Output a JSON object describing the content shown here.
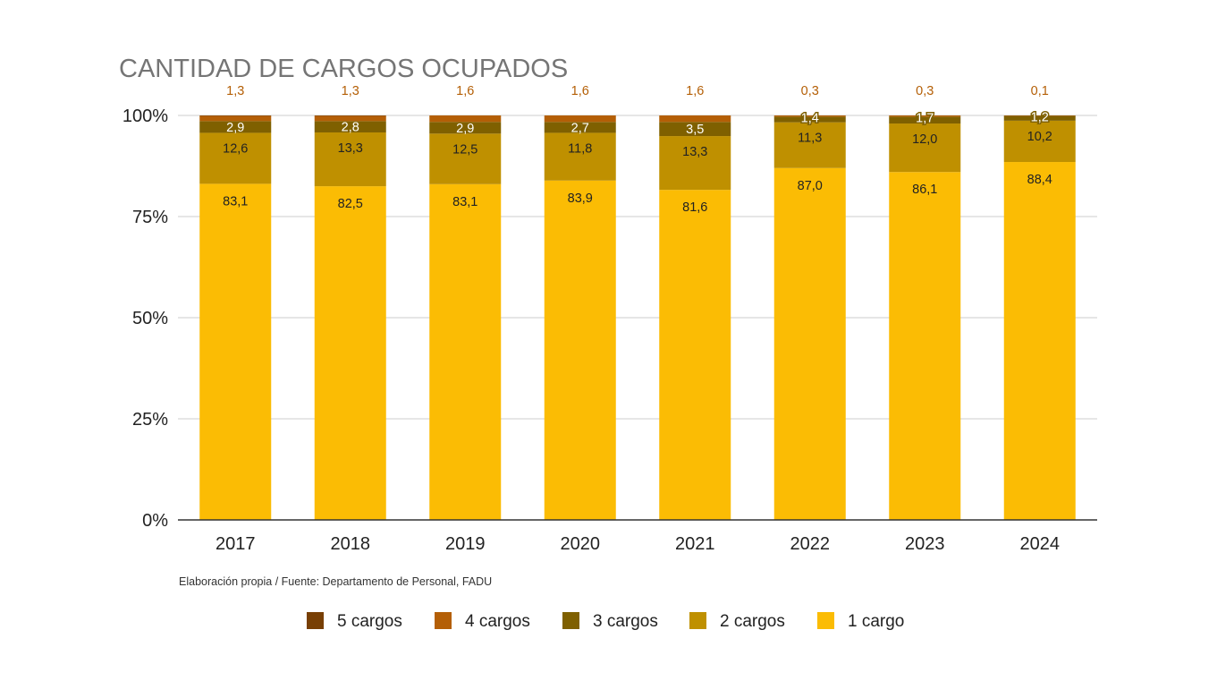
{
  "chart_data": {
    "type": "bar",
    "stacked": true,
    "normalized": true,
    "title": "CANTIDAD DE CARGOS OCUPADOS",
    "categories": [
      "2017",
      "2018",
      "2019",
      "2020",
      "2021",
      "2022",
      "2023",
      "2024"
    ],
    "series": [
      {
        "name": "1 cargo",
        "color": "#fbbc04",
        "values": [
          83.1,
          82.5,
          83.1,
          83.9,
          81.6,
          87.0,
          86.1,
          88.4
        ],
        "labels": [
          "83,1",
          "82,5",
          "83,1",
          "83,9",
          "81,6",
          "87,0",
          "86,1",
          "88,4"
        ]
      },
      {
        "name": "2 cargos",
        "color": "#bf9000",
        "values": [
          12.6,
          13.3,
          12.5,
          11.8,
          13.3,
          11.3,
          12.0,
          10.2
        ],
        "labels": [
          "12,6",
          "13,3",
          "12,5",
          "11,8",
          "13,3",
          "11,3",
          "12,0",
          "10,2"
        ]
      },
      {
        "name": "3 cargos",
        "color": "#7f6000",
        "values": [
          2.9,
          2.8,
          2.9,
          2.7,
          3.5,
          1.4,
          1.7,
          1.2
        ],
        "labels": [
          "2,9",
          "2,8",
          "2,9",
          "2,7",
          "3,5",
          "1,4",
          "1,7",
          "1,2"
        ]
      },
      {
        "name": "4 cargos",
        "color": "#b45f06",
        "values": [
          1.3,
          1.3,
          1.6,
          1.6,
          1.6,
          0.3,
          0.3,
          0.1
        ],
        "labels": [
          "1,3",
          "1,3",
          "1,6",
          "1,6",
          "1,6",
          "0,3",
          "0,3",
          "0,1"
        ]
      },
      {
        "name": "5 cargos",
        "color": "#783f04",
        "values": [
          0.1,
          0.1,
          0.0,
          0.0,
          0.0,
          0.0,
          0.0,
          0.0
        ],
        "labels": [
          "",
          "",
          "",
          "",
          "",
          "",
          "",
          ""
        ]
      }
    ],
    "yticks": [
      "0%",
      "25%",
      "50%",
      "75%",
      "100%"
    ],
    "ylim": [
      0,
      100
    ],
    "grid": true,
    "legend_position": "bottom",
    "legend_order": [
      "5 cargos",
      "4 cargos",
      "3 cargos",
      "2 cargos",
      "1 cargo"
    ],
    "source_note": "Elaboración propia / Fuente: Departamento de Personal, FADU"
  }
}
